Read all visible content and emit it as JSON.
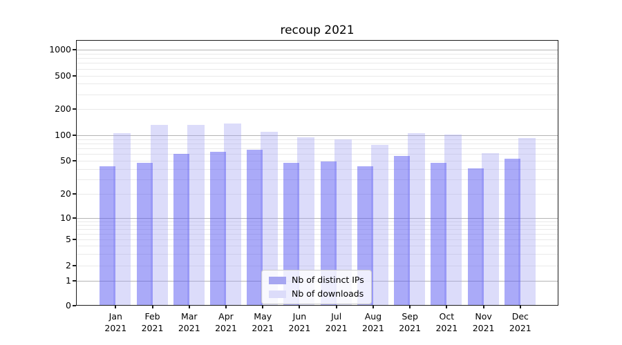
{
  "chart_data": {
    "type": "bar",
    "title": "recoup 2021",
    "categories": [
      "Jan",
      "Feb",
      "Mar",
      "Apr",
      "May",
      "Jun",
      "Jul",
      "Aug",
      "Sep",
      "Oct",
      "Nov",
      "Dec"
    ],
    "year_label": "2021",
    "series": [
      {
        "name": "Nb of distinct IPs",
        "legend_color": "#a6a6f1",
        "bar_color": "rgba(85,85,242,0.5)",
        "values": [
          42,
          46,
          59,
          63,
          66,
          46,
          48,
          42,
          56,
          46,
          40,
          52
        ]
      },
      {
        "name": "Nb of downloads",
        "legend_color": "#dcdcfa",
        "bar_color": "rgba(163,163,242,0.38)",
        "values": [
          103,
          129,
          129,
          133,
          108,
          93,
          87,
          76,
          104,
          100,
          60,
          91
        ]
      }
    ],
    "xlabel": "",
    "ylabel": "",
    "yscale": "symlog",
    "y_ticks": [
      0,
      1,
      2,
      5,
      10,
      20,
      50,
      100,
      200,
      500,
      1000
    ],
    "y_minor_gridlines": [
      2,
      3,
      4,
      5,
      6,
      7,
      8,
      9,
      20,
      30,
      40,
      50,
      60,
      70,
      80,
      90,
      200,
      300,
      400,
      500,
      600,
      700,
      800,
      900
    ],
    "y_major_gridlines": [
      1,
      10,
      100,
      1000
    ],
    "ylim": [
      0,
      1200
    ],
    "grid": true,
    "grid_major_color": "#b4b4b4",
    "grid_minor_color": "#e9e9e9",
    "legend_position": "lower center"
  }
}
